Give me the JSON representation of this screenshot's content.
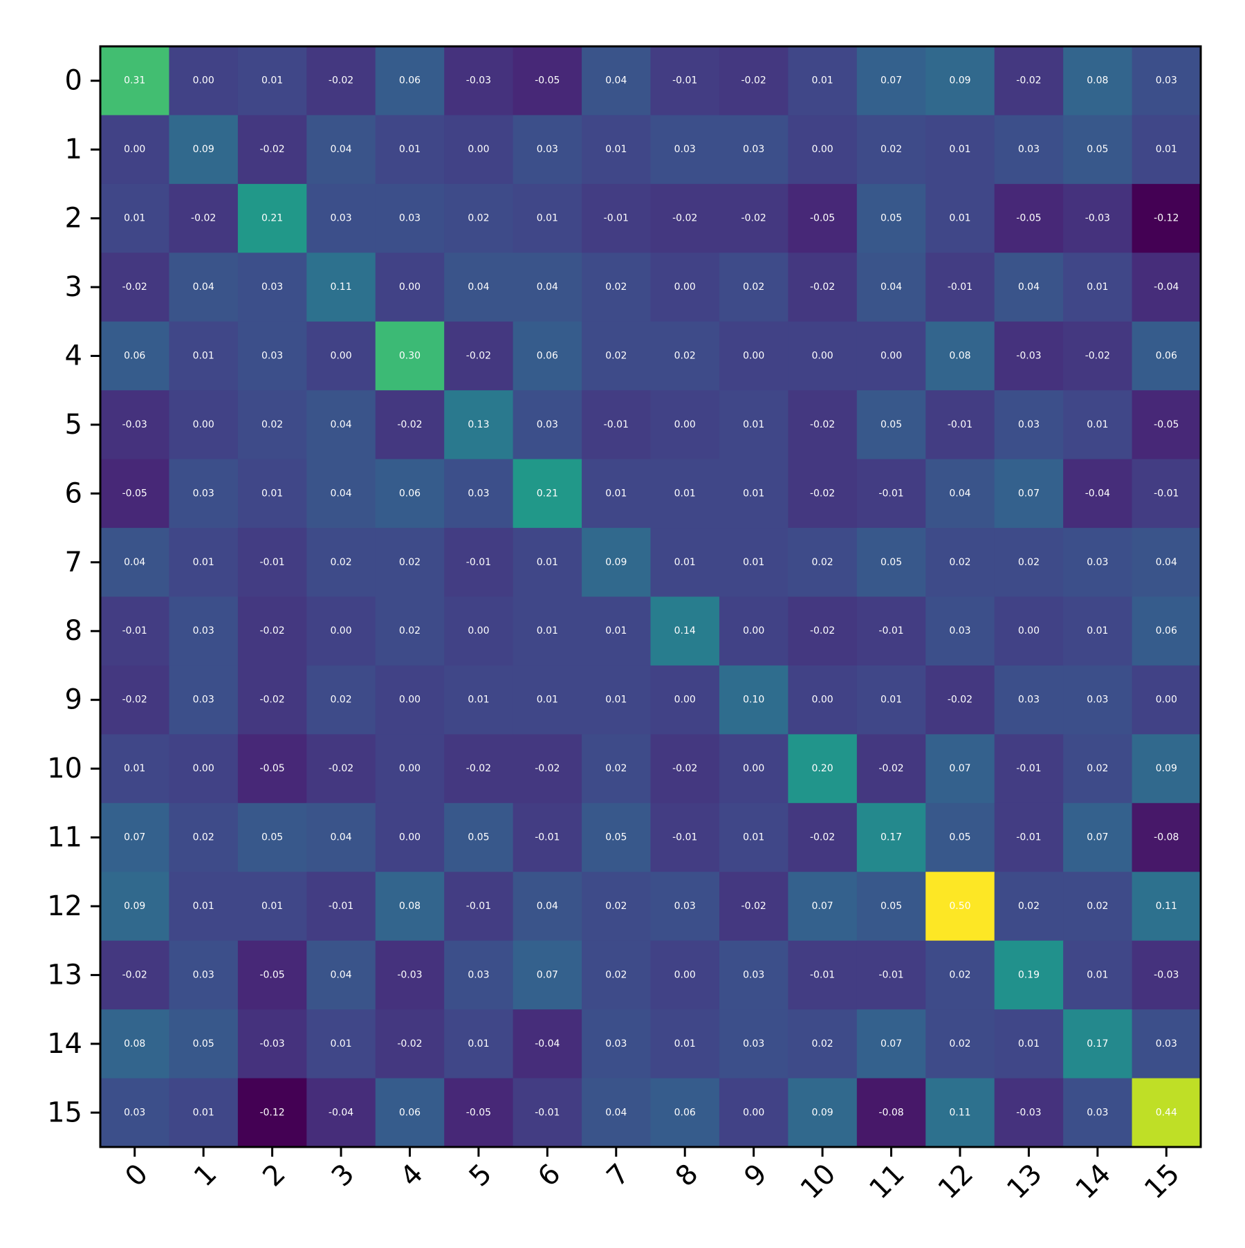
{
  "chart_data": {
    "type": "heatmap",
    "title": "",
    "xlabel": "",
    "ylabel": "",
    "x_ticks": [
      "0",
      "1",
      "2",
      "3",
      "4",
      "5",
      "6",
      "7",
      "8",
      "9",
      "10",
      "11",
      "12",
      "13",
      "14",
      "15"
    ],
    "y_ticks": [
      "0",
      "1",
      "2",
      "3",
      "4",
      "5",
      "6",
      "7",
      "8",
      "9",
      "10",
      "11",
      "12",
      "13",
      "14",
      "15"
    ],
    "colormap": "viridis",
    "color_range": [
      -0.12,
      0.5
    ],
    "matrix": [
      [
        0.31,
        0.0,
        0.01,
        -0.02,
        0.06,
        -0.03,
        -0.05,
        0.04,
        -0.01,
        -0.02,
        0.01,
        0.07,
        0.09,
        -0.02,
        0.08,
        0.03
      ],
      [
        0.0,
        0.09,
        -0.02,
        0.04,
        0.01,
        0.0,
        0.03,
        0.01,
        0.03,
        0.03,
        0.0,
        0.02,
        0.01,
        0.03,
        0.05,
        0.01
      ],
      [
        0.01,
        -0.02,
        0.21,
        0.03,
        0.03,
        0.02,
        0.01,
        -0.01,
        -0.02,
        -0.02,
        -0.05,
        0.05,
        0.01,
        -0.05,
        -0.03,
        -0.12
      ],
      [
        -0.02,
        0.04,
        0.03,
        0.11,
        -0.0,
        0.04,
        0.04,
        0.02,
        0.0,
        0.02,
        -0.02,
        0.04,
        -0.01,
        0.04,
        0.01,
        -0.04
      ],
      [
        0.06,
        0.01,
        0.03,
        -0.0,
        0.3,
        -0.02,
        0.06,
        0.02,
        0.02,
        -0.0,
        0.0,
        0.0,
        0.08,
        -0.03,
        -0.02,
        0.06
      ],
      [
        -0.03,
        0.0,
        0.02,
        0.04,
        -0.02,
        0.13,
        0.03,
        -0.01,
        0.0,
        0.01,
        -0.02,
        0.05,
        -0.01,
        0.03,
        0.01,
        -0.05
      ],
      [
        -0.05,
        0.03,
        0.01,
        0.04,
        0.06,
        0.03,
        0.21,
        0.01,
        0.01,
        0.01,
        -0.02,
        -0.01,
        0.04,
        0.07,
        -0.04,
        -0.01
      ],
      [
        0.04,
        0.01,
        -0.01,
        0.02,
        0.02,
        -0.01,
        0.01,
        0.09,
        0.01,
        0.01,
        0.02,
        0.05,
        0.02,
        0.02,
        0.03,
        0.04
      ],
      [
        -0.01,
        0.03,
        -0.02,
        0.0,
        0.02,
        0.0,
        0.01,
        0.01,
        0.14,
        -0.0,
        -0.02,
        -0.01,
        0.03,
        -0.0,
        0.01,
        0.06
      ],
      [
        -0.02,
        0.03,
        -0.02,
        0.02,
        -0.0,
        0.01,
        0.01,
        0.01,
        -0.0,
        0.1,
        -0.0,
        0.01,
        -0.02,
        0.03,
        0.03,
        0.0
      ],
      [
        0.01,
        0.0,
        -0.05,
        -0.02,
        0.0,
        -0.02,
        -0.02,
        0.02,
        -0.02,
        -0.0,
        0.2,
        -0.02,
        0.07,
        -0.01,
        0.02,
        0.09
      ],
      [
        0.07,
        0.02,
        0.05,
        0.04,
        0.0,
        0.05,
        -0.01,
        0.05,
        -0.01,
        0.01,
        -0.02,
        0.17,
        0.05,
        -0.01,
        0.07,
        -0.08
      ],
      [
        0.09,
        0.01,
        0.01,
        -0.01,
        0.08,
        -0.01,
        0.04,
        0.02,
        0.03,
        -0.02,
        0.07,
        0.05,
        0.5,
        0.02,
        0.02,
        0.11
      ],
      [
        -0.02,
        0.03,
        -0.05,
        0.04,
        -0.03,
        0.03,
        0.07,
        0.02,
        -0.0,
        0.03,
        -0.01,
        -0.01,
        0.02,
        0.19,
        0.01,
        -0.03
      ],
      [
        0.08,
        0.05,
        -0.03,
        0.01,
        -0.02,
        0.01,
        -0.04,
        0.03,
        0.01,
        0.03,
        0.02,
        0.07,
        0.02,
        0.01,
        0.17,
        0.03
      ],
      [
        0.03,
        0.01,
        -0.12,
        -0.04,
        0.06,
        -0.05,
        -0.01,
        0.04,
        0.06,
        0.0,
        0.09,
        -0.08,
        0.11,
        -0.03,
        0.03,
        0.44
      ]
    ],
    "grid": false,
    "legend": "none"
  }
}
